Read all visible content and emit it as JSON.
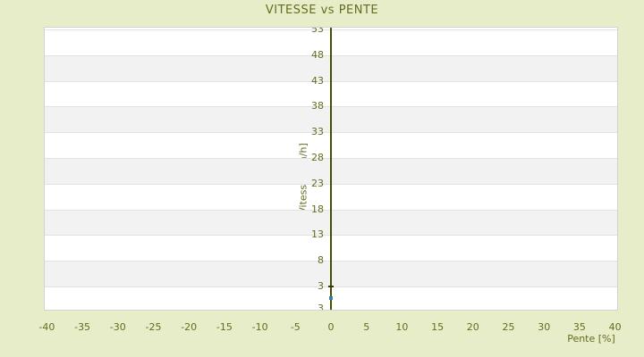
{
  "page": {
    "background_color": "#e8edc9",
    "text_color": "#666c1e"
  },
  "chart_data": {
    "type": "scatter",
    "title": "VITESSE vs PENTE",
    "xlabel": "Pente [%]",
    "ylabel": "Vitesse [km/h]",
    "xlim": [
      -40.3,
      40.3
    ],
    "ylim": [
      -1.5,
      53.35
    ],
    "x_ticks": [
      -40,
      -35,
      -30,
      -25,
      -20,
      -15,
      -10,
      -5,
      0,
      5,
      10,
      15,
      20,
      25,
      30,
      35,
      40
    ],
    "y_ticks": [
      53,
      48,
      43,
      38,
      33,
      28,
      23,
      18,
      13,
      8,
      3
    ],
    "y_axis_bottom_label": "3",
    "grid": {
      "horizontal_bands": true,
      "band_color": "#ffffff",
      "band_alt_color": "#f2f2f2",
      "gridline_color": "#e2e2e2",
      "border_color": "#d3d3d3"
    },
    "zero_axis": {
      "show": true,
      "color": "#454f02"
    },
    "legend": "none",
    "series": [
      {
        "name": "vitesse",
        "marker": "square",
        "marker_color": "#3d7dad",
        "points": [
          {
            "x": 0,
            "y": 0.8
          }
        ],
        "error_caps": [
          {
            "x": 0,
            "y": 3.0,
            "color": "#333a05"
          }
        ]
      }
    ]
  }
}
